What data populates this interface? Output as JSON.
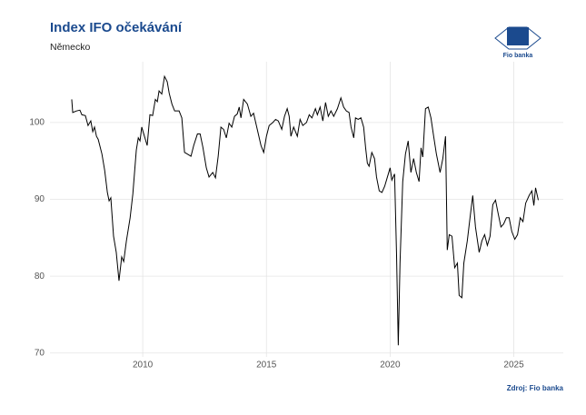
{
  "chart_data": {
    "type": "line",
    "title": "Index IFO očekávání",
    "subtitle": "Německo",
    "source": "Zdroj: Fio banka",
    "logo_text": "Fio banka",
    "color": "#000000",
    "grid": true,
    "xlim": [
      2006.25,
      2027.0
    ],
    "ylim": [
      69.5,
      107.9
    ],
    "xticks": [
      2010,
      2015,
      2020,
      2025
    ],
    "yticks": [
      70,
      80,
      90,
      100
    ],
    "x": [
      2007.13,
      2007.17,
      2007.32,
      2007.46,
      2007.54,
      2007.68,
      2007.79,
      2007.9,
      2007.98,
      2008.05,
      2008.13,
      2008.2,
      2008.35,
      2008.46,
      2008.57,
      2008.64,
      2008.71,
      2008.82,
      2008.93,
      2009.04,
      2009.15,
      2009.23,
      2009.34,
      2009.49,
      2009.6,
      2009.74,
      2009.82,
      2009.89,
      2009.96,
      2010.07,
      2010.18,
      2010.29,
      2010.4,
      2010.51,
      2010.59,
      2010.66,
      2010.77,
      2010.88,
      2010.99,
      2011.07,
      2011.18,
      2011.29,
      2011.47,
      2011.58,
      2011.69,
      2011.8,
      2011.95,
      2012.06,
      2012.21,
      2012.32,
      2012.43,
      2012.57,
      2012.68,
      2012.83,
      2012.94,
      2013.05,
      2013.16,
      2013.27,
      2013.38,
      2013.49,
      2013.6,
      2013.71,
      2013.82,
      2013.9,
      2013.97,
      2014.08,
      2014.23,
      2014.37,
      2014.48,
      2014.63,
      2014.78,
      2014.89,
      2015.0,
      2015.11,
      2015.26,
      2015.37,
      2015.48,
      2015.62,
      2015.73,
      2015.84,
      2015.92,
      2015.99,
      2016.1,
      2016.25,
      2016.36,
      2016.47,
      2016.62,
      2016.73,
      2016.84,
      2016.98,
      2017.06,
      2017.17,
      2017.28,
      2017.39,
      2017.5,
      2017.61,
      2017.72,
      2017.87,
      2018.01,
      2018.12,
      2018.23,
      2018.34,
      2018.42,
      2018.53,
      2018.6,
      2018.71,
      2018.82,
      2018.93,
      2019.01,
      2019.08,
      2019.15,
      2019.26,
      2019.37,
      2019.45,
      2019.56,
      2019.67,
      2019.78,
      2019.89,
      2020.0,
      2020.07,
      2020.18,
      2020.26,
      2020.33,
      2020.4,
      2020.51,
      2020.62,
      2020.73,
      2020.84,
      2020.95,
      2021.06,
      2021.17,
      2021.25,
      2021.32,
      2021.43,
      2021.54,
      2021.65,
      2021.76,
      2021.87,
      2022.02,
      2022.13,
      2022.24,
      2022.31,
      2022.39,
      2022.5,
      2022.61,
      2022.72,
      2022.79,
      2022.9,
      2022.98,
      2023.12,
      2023.23,
      2023.34,
      2023.45,
      2023.6,
      2023.71,
      2023.82,
      2023.93,
      2024.04,
      2024.15,
      2024.26,
      2024.37,
      2024.48,
      2024.59,
      2024.7,
      2024.81,
      2024.92,
      2025.04,
      2025.15,
      2025.26,
      2025.37,
      2025.48,
      2025.62,
      2025.73,
      2025.81,
      2025.88,
      2025.99
    ],
    "values": [
      103,
      101.3,
      101.5,
      101.6,
      101,
      100.9,
      99.6,
      100.2,
      98.8,
      99.4,
      98.2,
      97.8,
      95.9,
      93.8,
      90.9,
      89.8,
      90.2,
      85.2,
      83.1,
      79.4,
      82.5,
      81.9,
      84.6,
      87.6,
      90.7,
      96.4,
      98,
      97.6,
      99.4,
      98.2,
      97,
      101,
      100.9,
      103,
      102.7,
      104.1,
      103.7,
      106,
      105.3,
      103.8,
      102.4,
      101.5,
      101.5,
      100.6,
      96.1,
      95.9,
      95.6,
      97,
      98.5,
      98.5,
      96.8,
      94.1,
      92.9,
      93.5,
      92.8,
      95.6,
      99.4,
      99.1,
      98,
      99.9,
      99.4,
      100.8,
      101.1,
      102,
      100.6,
      103,
      102.4,
      100.8,
      101.2,
      99.1,
      97,
      96.1,
      98.2,
      99.6,
      100,
      100.4,
      100.2,
      99.1,
      100.8,
      101.8,
      100.8,
      98.2,
      99.4,
      98.2,
      100.4,
      99.6,
      100,
      101,
      100.6,
      101.8,
      101,
      102,
      100.2,
      102.6,
      100.8,
      101.5,
      100.8,
      101.8,
      103.2,
      102,
      101.5,
      101.3,
      99.4,
      98,
      100.6,
      100.4,
      100.6,
      99.4,
      96.7,
      94.7,
      94.3,
      96.1,
      95.3,
      92.9,
      91.1,
      90.9,
      91.7,
      92.9,
      94.1,
      92.5,
      93.3,
      82.8,
      71,
      81.7,
      92.3,
      95.9,
      97.6,
      93.5,
      95.3,
      93.5,
      92.3,
      96.7,
      95.5,
      101.8,
      102,
      100.6,
      98.2,
      95.9,
      93.5,
      95.3,
      98.2,
      83.4,
      85.4,
      85.2,
      81.1,
      81.7,
      77.5,
      77.2,
      81.7,
      84.6,
      87.6,
      90.5,
      86.4,
      83.1,
      84.6,
      85.4,
      84,
      85.2,
      89.3,
      89.9,
      88.1,
      86.4,
      86.8,
      87.6,
      87.6,
      85.8,
      84.8,
      85.4,
      87.6,
      87.1,
      89.5,
      90.5,
      91.1,
      89.2,
      91.5,
      89.9
    ]
  }
}
